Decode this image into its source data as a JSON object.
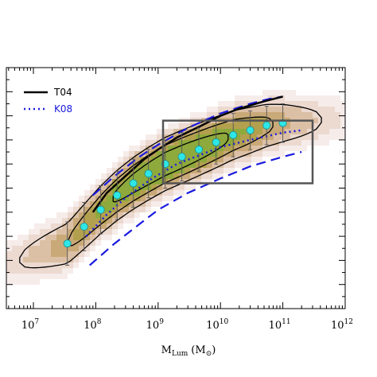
{
  "chart_data": {
    "type": "scatter",
    "title": "",
    "xlabel": "M",
    "xlabel_sub": "Lum",
    "xlabel_unit": "(M",
    "xlabel_unit_sym": "⊙",
    "xlabel_unit_close": ")",
    "xscale": "log",
    "xlim": [
      10000000.0,
      1000000000000.0
    ],
    "ylim": [
      0,
      1
    ],
    "grid": false,
    "legend_position": "top-left",
    "x_tick_labels": [
      {
        "base": "10",
        "exp": "7",
        "value": 10000000.0
      },
      {
        "base": "10",
        "exp": "8",
        "value": 100000000.0
      },
      {
        "base": "10",
        "exp": "9",
        "value": 1000000000.0
      },
      {
        "base": "10",
        "exp": "10",
        "value": 10000000000.0
      },
      {
        "base": "10",
        "exp": "11",
        "value": 100000000000.0
      },
      {
        "base": "10",
        "exp": "12",
        "value": 1000000000000.0
      }
    ],
    "series": [
      {
        "name": "T04",
        "kind": "relation",
        "color": "#000000",
        "style": "solid",
        "x": [
          90000000.0,
          150000000.0,
          300000000.0,
          600000000.0,
          1000000000.0,
          2000000000.0,
          5000000000.0,
          10000000000.0,
          20000000000.0,
          50000000000.0,
          100000000000.0
        ],
        "y": [
          0.4,
          0.48,
          0.55,
          0.62,
          0.66,
          0.71,
          0.76,
          0.8,
          0.83,
          0.86,
          0.88
        ]
      },
      {
        "name": "K08",
        "kind": "relation",
        "color": "#1a1adf",
        "style": "dotted",
        "x": [
          70000000.0,
          150000000.0,
          300000000.0,
          800000000.0,
          2000000000.0,
          5000000000.0,
          10000000000.0,
          30000000000.0,
          100000000000.0,
          200000000000.0
        ],
        "y": [
          0.3,
          0.39,
          0.46,
          0.54,
          0.6,
          0.64,
          0.67,
          0.7,
          0.73,
          0.74
        ]
      },
      {
        "name": "",
        "kind": "bounds",
        "color": "#1a1adf",
        "style": "dashed",
        "upper": {
          "x": [
            90000000.0,
            200000000.0,
            500000000.0,
            1000000000.0,
            3000000000.0,
            10000000000.0,
            30000000000.0,
            60000000000.0,
            100000000000.0
          ],
          "y": [
            0.47,
            0.55,
            0.63,
            0.68,
            0.75,
            0.81,
            0.85,
            0.87,
            0.88
          ]
        },
        "lower": {
          "x": [
            80000000.0,
            200000000.0,
            500000000.0,
            1000000000.0,
            3000000000.0,
            10000000000.0,
            30000000000.0,
            100000000000.0,
            200000000000.0
          ],
          "y": [
            0.18,
            0.27,
            0.35,
            0.41,
            0.48,
            0.54,
            0.59,
            0.63,
            0.65
          ]
        }
      },
      {
        "name": "",
        "kind": "binned_median",
        "color": "#2ee6e6",
        "x": [
          35000000.0,
          65000000.0,
          120000000.0,
          220000000.0,
          400000000.0,
          700000000.0,
          1300000000.0,
          2400000000.0,
          4500000000.0,
          8500000000.0,
          16000000000.0,
          30000000000.0,
          55000000000.0,
          100000000000.0
        ],
        "y": [
          0.27,
          0.34,
          0.41,
          0.47,
          0.52,
          0.56,
          0.6,
          0.63,
          0.66,
          0.69,
          0.72,
          0.74,
          0.76,
          0.77
        ],
        "err": [
          0.09,
          0.1,
          0.1,
          0.1,
          0.1,
          0.1,
          0.1,
          0.1,
          0.09,
          0.09,
          0.09,
          0.08,
          0.08,
          0.08
        ]
      }
    ],
    "selection_box": {
      "x": [
        1200000000.0,
        300000000000.0
      ],
      "y": [
        0.52,
        0.78
      ]
    }
  }
}
